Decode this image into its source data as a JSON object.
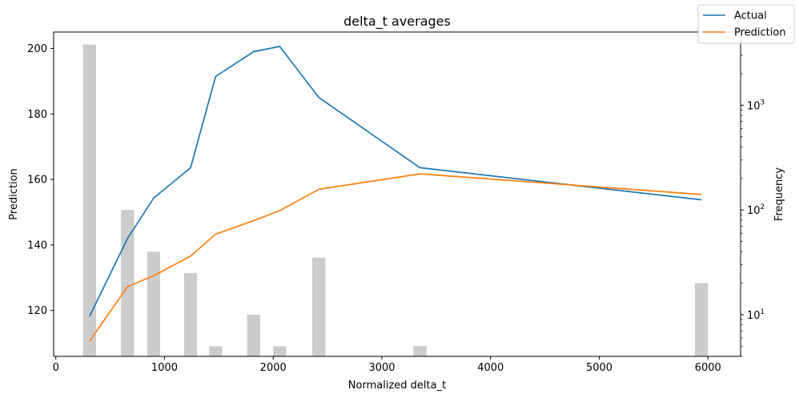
{
  "chart_data": {
    "type": "line",
    "title": "delta_t averages",
    "xlabel": "Normalized delta_t",
    "ylabel": "Prediction",
    "y2label": "Frequency",
    "xlim": [
      -20,
      6300
    ],
    "ylim": [
      106,
      205
    ],
    "y2lim": [
      4,
      5000
    ],
    "y2scale": "log",
    "grid": false,
    "legend_position": "top-right",
    "x_ticks": [
      0,
      1000,
      2000,
      3000,
      4000,
      5000,
      6000
    ],
    "y_ticks": [
      120,
      140,
      160,
      180,
      200
    ],
    "y2_ticks": [
      {
        "value": 10,
        "base": "10",
        "exp": "1"
      },
      {
        "value": 100,
        "base": "10",
        "exp": "2"
      },
      {
        "value": 1000,
        "base": "10",
        "exp": "3"
      }
    ],
    "series": [
      {
        "name": "Actual",
        "color": "#1f77b4",
        "x": [
          310,
          660,
          900,
          1240,
          1470,
          1820,
          2060,
          2420,
          3350,
          5940
        ],
        "y": [
          118.2,
          142.0,
          154.3,
          163.6,
          191.4,
          199.0,
          200.6,
          185.0,
          163.6,
          153.8
        ]
      },
      {
        "name": "Prediction",
        "color": "#ff7f0e",
        "x": [
          310,
          660,
          900,
          1240,
          1470,
          1820,
          2060,
          2420,
          3350,
          5940
        ],
        "y": [
          110.6,
          127.3,
          130.6,
          136.6,
          143.3,
          147.4,
          150.5,
          157.0,
          161.7,
          155.4
        ]
      }
    ],
    "histogram": {
      "name": "Frequency",
      "color": "#cccccc",
      "bar_width": 120,
      "x": [
        310,
        660,
        900,
        1240,
        1470,
        1820,
        2060,
        2420,
        3350,
        5940
      ],
      "values": [
        3800,
        100,
        40,
        25,
        5,
        10,
        5,
        35,
        5,
        20
      ]
    }
  }
}
